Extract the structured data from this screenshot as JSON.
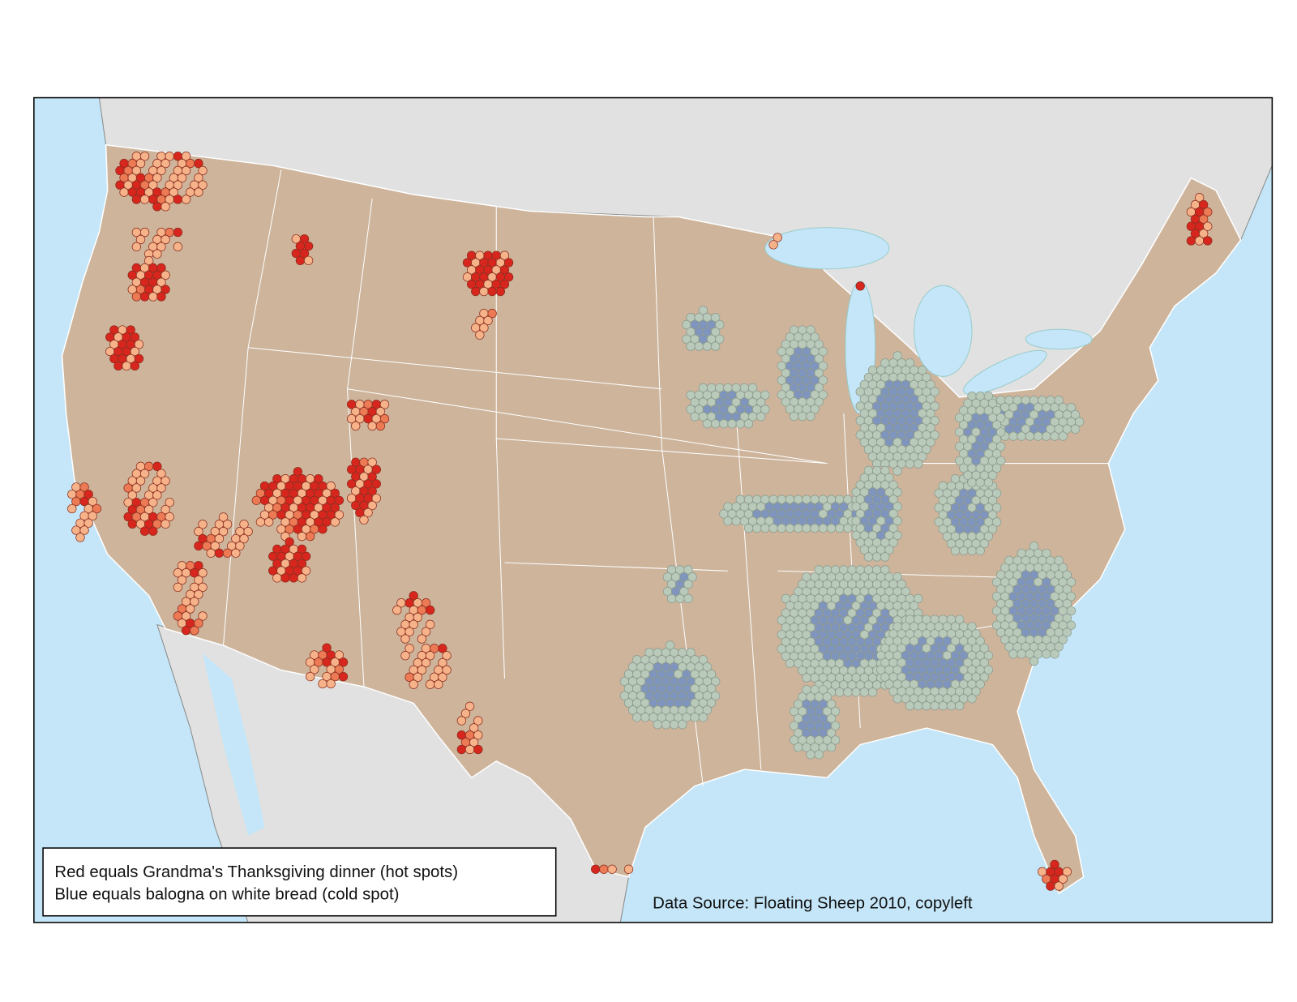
{
  "legend": {
    "lines": [
      "Red equals Grandma's Thanksgiving dinner (hot spots)",
      "Blue equals balogna on white bread (cold spot)"
    ]
  },
  "source": "Data Source: Floating Sheep 2010, copyleft"
}
